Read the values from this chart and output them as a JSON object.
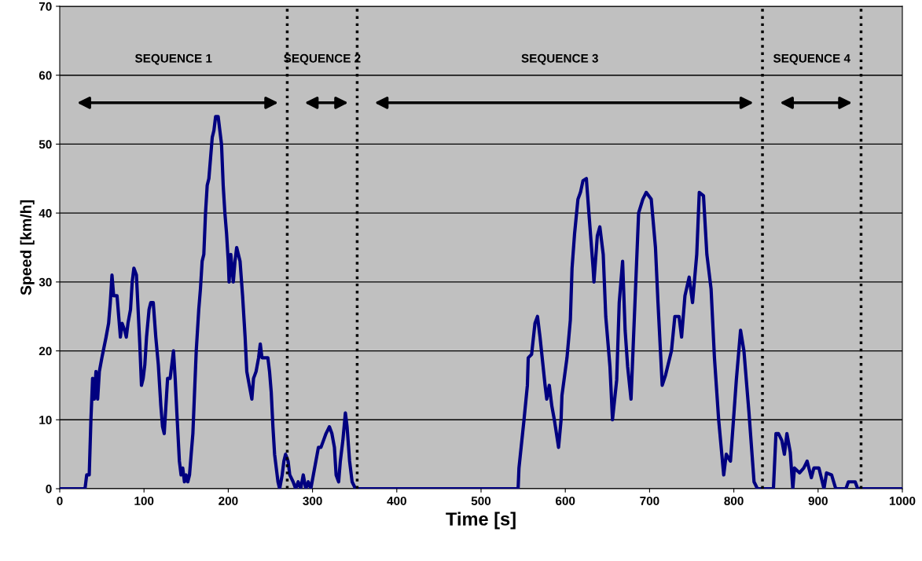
{
  "chart_data": {
    "type": "line",
    "xlabel": "Time [s]",
    "ylabel": "Speed [km/h]",
    "xlim": [
      0,
      1000
    ],
    "xticks": [
      0,
      100,
      200,
      300,
      400,
      500,
      600,
      700,
      800,
      900,
      1000
    ],
    "ylim": [
      0,
      70
    ],
    "yticks": [
      0,
      10,
      20,
      30,
      40,
      50,
      60,
      70
    ],
    "grid": "y",
    "marker": "none",
    "line_style": "solid",
    "series": [
      {
        "color": "#000080",
        "x": [
          0,
          30,
          32,
          35,
          37,
          39,
          41,
          43,
          45,
          47,
          50,
          55,
          58,
          60,
          62,
          64,
          68,
          70,
          72,
          74,
          77,
          79,
          81,
          84,
          86,
          88,
          91,
          93,
          95,
          97,
          99,
          101,
          103,
          106,
          108,
          111,
          114,
          117,
          120,
          122,
          124,
          126,
          128,
          131,
          133,
          135,
          137,
          139,
          142,
          144,
          146,
          148,
          150,
          152,
          154,
          156,
          158,
          160,
          162,
          165,
          167,
          169,
          171,
          173,
          175,
          177,
          179,
          181,
          183,
          185,
          188,
          190,
          192,
          194,
          196,
          198,
          200,
          201,
          203,
          206,
          208,
          210,
          212,
          214,
          217,
          220,
          222,
          225,
          228,
          230,
          233,
          236,
          238,
          240,
          244,
          247,
          249,
          251,
          253,
          255,
          257,
          259,
          261,
          264,
          266,
          268,
          271,
          273,
          277,
          280,
          283,
          286,
          289,
          292,
          295,
          298,
          301,
          304,
          307,
          310,
          313,
          316,
          320,
          323,
          326,
          328,
          331,
          333,
          336,
          339,
          341,
          344,
          347,
          351,
          544,
          545,
          551,
          555,
          556,
          560,
          564,
          567,
          570,
          576,
          578,
          581,
          584,
          587,
          592,
          595,
          596,
          602,
          606,
          608,
          611,
          615,
          618,
          621,
          625,
          628,
          633,
          634,
          638,
          641,
          645,
          648,
          653,
          656,
          661,
          664,
          668,
          671,
          674,
          678,
          681,
          684,
          687,
          692,
          696,
          702,
          707,
          710,
          715,
          719,
          726,
          730,
          735,
          738,
          742,
          747,
          751,
          756,
          759,
          764,
          768,
          773,
          777,
          782,
          788,
          791,
          796,
          799,
          803,
          808,
          812,
          818,
          824,
          828,
          847,
          850,
          853,
          857,
          860,
          863,
          867,
          870,
          872,
          878,
          883,
          887,
          892,
          895,
          901,
          907,
          910,
          916,
          921,
          933,
          936,
          944,
          947,
          1000
        ],
        "values": [
          0,
          0,
          2,
          2,
          10,
          16,
          13,
          17,
          13,
          17,
          19,
          22,
          24,
          27,
          31,
          28,
          28,
          25,
          22,
          24,
          23,
          22,
          24,
          26,
          30,
          32,
          31,
          26,
          21,
          15,
          16,
          18,
          22,
          26,
          27,
          27,
          22,
          18,
          12,
          9,
          8,
          12,
          16,
          16,
          18,
          20,
          16,
          11,
          4,
          2,
          3,
          1,
          2,
          1,
          2,
          5,
          8,
          14,
          20,
          26,
          29,
          33,
          34,
          40,
          44,
          45,
          48,
          51,
          52,
          54,
          54,
          52,
          50,
          44,
          40,
          37,
          33,
          30,
          34,
          30,
          33,
          35,
          34,
          33,
          28,
          22,
          17,
          15,
          13,
          16,
          17,
          19,
          21,
          19,
          19,
          19,
          17,
          14,
          9,
          5,
          3,
          1,
          0,
          2,
          4,
          5,
          4,
          2,
          1,
          0,
          1,
          0,
          2,
          0,
          1,
          0,
          2,
          4,
          6,
          6,
          7,
          8,
          9,
          8,
          6,
          2,
          1,
          4,
          7,
          11,
          9,
          4,
          1,
          0,
          0,
          3,
          10,
          15,
          19,
          19.5,
          24,
          25,
          22,
          15,
          13,
          15,
          12,
          10,
          6,
          10,
          13.5,
          19,
          24.5,
          32,
          37,
          42,
          43,
          44.7,
          45,
          40,
          32,
          30,
          36.7,
          38,
          34,
          25,
          17.7,
          10,
          15.8,
          27,
          33,
          23,
          17.7,
          13,
          22,
          31,
          40,
          42,
          43,
          42,
          35,
          27,
          15,
          16.5,
          20,
          25,
          25,
          22,
          28,
          30.7,
          27,
          34,
          43,
          42.5,
          34,
          29,
          19,
          10,
          2,
          5,
          4,
          9,
          15.8,
          23,
          20,
          11,
          1,
          0,
          0,
          8,
          8,
          7,
          5,
          8,
          5.3,
          0,
          3,
          2.3,
          3,
          4,
          1.6,
          3,
          3,
          0,
          2.3,
          2,
          0,
          0,
          1,
          1,
          0,
          0
        ]
      }
    ],
    "ref_lines": [
      {
        "axis": "x",
        "value": 270,
        "line_style": "dotted",
        "color": "#000000"
      },
      {
        "axis": "x",
        "value": 353,
        "line_style": "dotted",
        "color": "#000000"
      },
      {
        "axis": "x",
        "value": 834,
        "line_style": "dotted",
        "color": "#000000"
      },
      {
        "axis": "x",
        "value": 951,
        "line_style": "dotted",
        "color": "#000000"
      }
    ],
    "annotations": [
      "SEQUENCE 1",
      "SEQUENCE 2",
      "SEQUENCE 3",
      "SEQUENCE 4"
    ]
  }
}
